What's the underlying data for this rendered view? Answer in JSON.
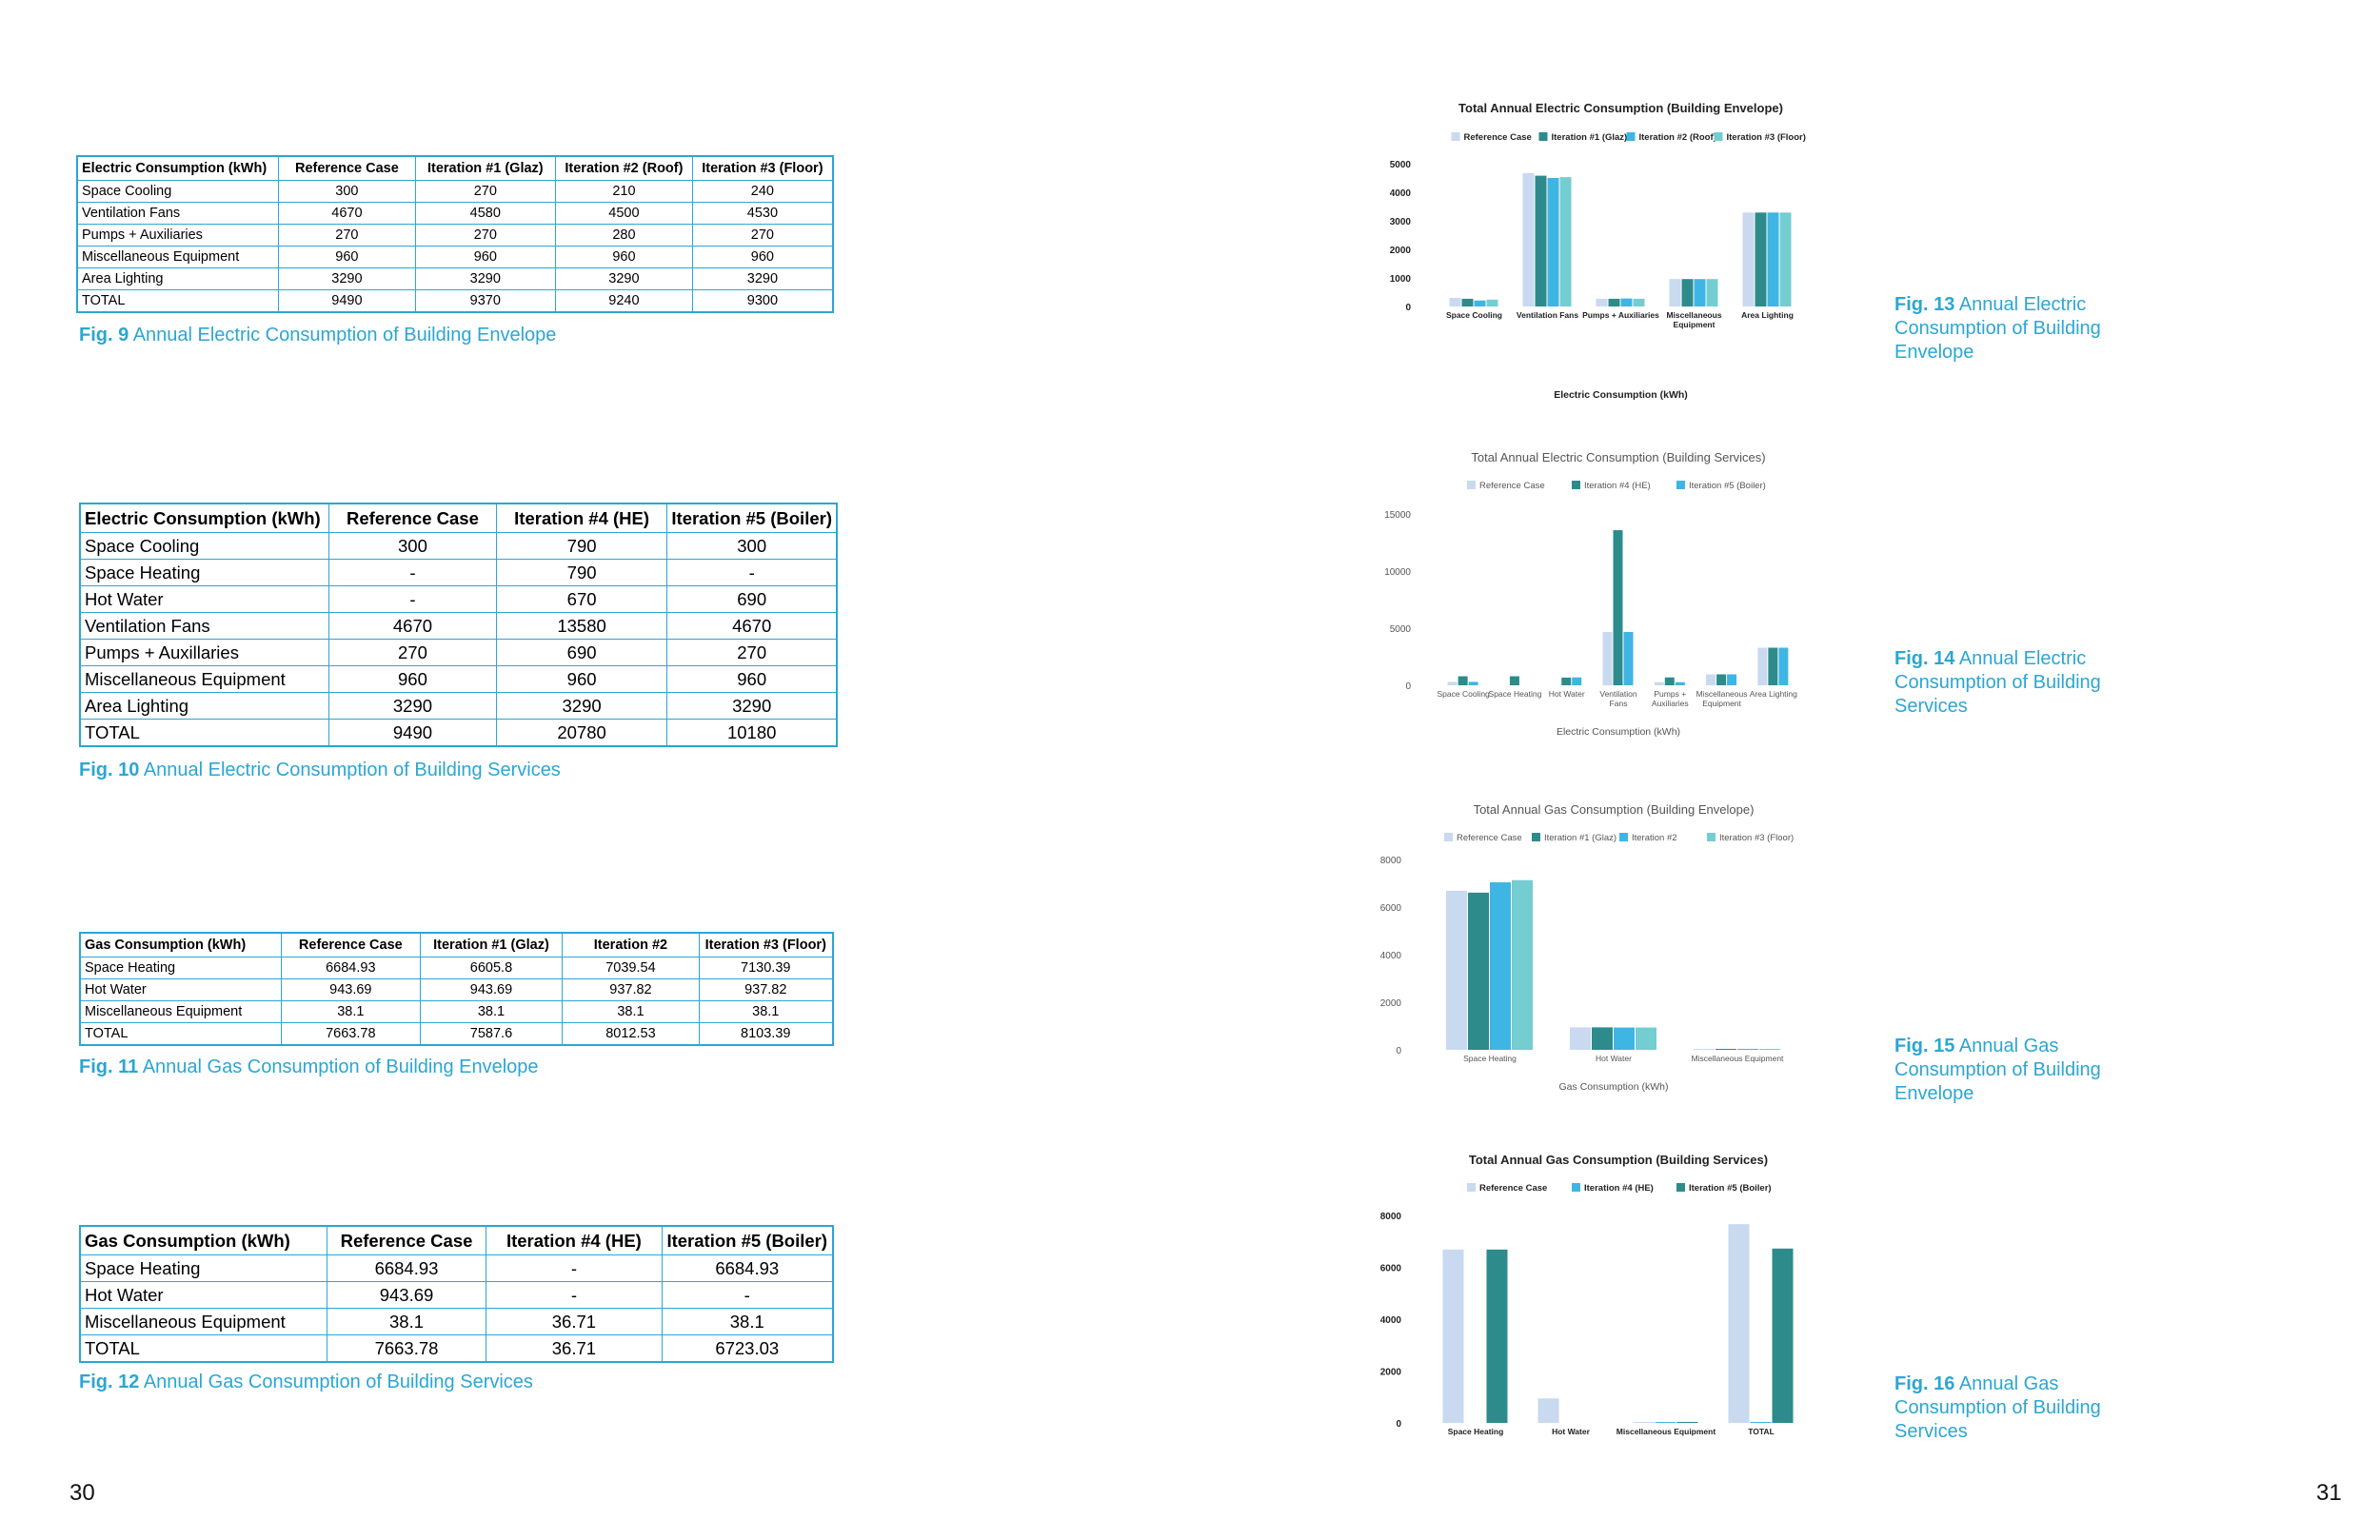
{
  "pages": {
    "left": "30",
    "right": "31"
  },
  "tables": [
    {
      "headers": [
        "Electric Consumption (kWh)",
        "Reference Case",
        "Iteration #1 (Glaz)",
        "Iteration #2 (Roof)",
        "Iteration #3 (Floor)"
      ],
      "rows": [
        [
          "Space Cooling",
          "300",
          "270",
          "210",
          "240"
        ],
        [
          "Ventilation Fans",
          "4670",
          "4580",
          "4500",
          "4530"
        ],
        [
          "Pumps + Auxiliaries",
          "270",
          "270",
          "280",
          "270"
        ],
        [
          "Miscellaneous Equipment",
          "960",
          "960",
          "960",
          "960"
        ],
        [
          "Area Lighting",
          "3290",
          "3290",
          "3290",
          "3290"
        ],
        [
          "TOTAL",
          "9490",
          "9370",
          "9240",
          "9300"
        ]
      ]
    },
    {
      "headers": [
        "Electric Consumption (kWh)",
        "Reference Case",
        "Iteration #4 (HE)",
        "Iteration #5 (Boiler)"
      ],
      "rows": [
        [
          "Space Cooling",
          "300",
          "790",
          "300"
        ],
        [
          "Space Heating",
          "-",
          "790",
          "-"
        ],
        [
          "Hot Water",
          "-",
          "670",
          "690"
        ],
        [
          "Ventilation Fans",
          "4670",
          "13580",
          "4670"
        ],
        [
          "Pumps + Auxillaries",
          "270",
          "690",
          "270"
        ],
        [
          "Miscellaneous Equipment",
          "960",
          "960",
          "960"
        ],
        [
          "Area Lighting",
          "3290",
          "3290",
          "3290"
        ],
        [
          "TOTAL",
          "9490",
          "20780",
          "10180"
        ]
      ]
    },
    {
      "headers": [
        "Gas Consumption (kWh)",
        "Reference Case",
        "Iteration #1 (Glaz)",
        "Iteration #2",
        "Iteration #3 (Floor)"
      ],
      "rows": [
        [
          "Space Heating",
          "6684.93",
          "6605.8",
          "7039.54",
          "7130.39"
        ],
        [
          "Hot Water",
          "943.69",
          "943.69",
          "937.82",
          "937.82"
        ],
        [
          "Miscellaneous Equipment",
          "38.1",
          "38.1",
          "38.1",
          "38.1"
        ],
        [
          "TOTAL",
          "7663.78",
          "7587.6",
          "8012.53",
          "8103.39"
        ]
      ]
    },
    {
      "headers": [
        "Gas Consumption (kWh)",
        "Reference Case",
        "Iteration #4 (HE)",
        "Iteration #5 (Boiler)"
      ],
      "rows": [
        [
          "Space Heating",
          "6684.93",
          "-",
          "6684.93"
        ],
        [
          "Hot Water",
          "943.69",
          "-",
          "-"
        ],
        [
          "Miscellaneous Equipment",
          "38.1",
          "36.71",
          "38.1"
        ],
        [
          "TOTAL",
          "7663.78",
          "36.71",
          "6723.03"
        ]
      ]
    }
  ],
  "captions": {
    "fig9": {
      "num": "Fig. 9",
      "text": "Annual Electric Consumption of Building Envelope"
    },
    "fig10": {
      "num": "Fig. 10",
      "text": "Annual Electric Consumption of Building Services"
    },
    "fig11": {
      "num": "Fig. 11",
      "text": "Annual Gas Consumption of Building Envelope"
    },
    "fig12": {
      "num": "Fig. 12",
      "text": "Annual Gas Consumption of Building Services"
    },
    "fig13": {
      "num": "Fig. 13",
      "text": "Annual Electric Consumption of Building Envelope"
    },
    "fig14": {
      "num": "Fig. 14",
      "text": "Annual Electric Consumption of Building Services"
    },
    "fig15": {
      "num": "Fig. 15",
      "text": "Annual Gas Consumption of Building Envelope"
    },
    "fig16": {
      "num": "Fig. 16",
      "text": "Annual Gas Consumption of Building Services"
    }
  },
  "chart_data": [
    {
      "type": "bar",
      "title": "Total Annual Electric Consumption (Building Envelope)",
      "xlabel": "Electric Consumption (kWh)",
      "ylabel": "",
      "ylim": [
        0,
        5000
      ],
      "yticks": [
        0,
        1000,
        2000,
        3000,
        4000,
        5000
      ],
      "categories": [
        [
          "Space Cooling"
        ],
        [
          "Ventilation Fans"
        ],
        [
          "Pumps + Auxiliaries"
        ],
        [
          "Miscellaneous",
          "Equipment"
        ],
        [
          "Area Lighting"
        ]
      ],
      "series": [
        {
          "name": "Reference Case",
          "color": "#c9d9ef",
          "values": [
            300,
            4670,
            270,
            960,
            3290
          ]
        },
        {
          "name": "Iteration #1 (Glaz)",
          "color": "#2e8b8b",
          "values": [
            270,
            4580,
            270,
            960,
            3290
          ]
        },
        {
          "name": "Iteration #2 (Roof)",
          "color": "#3fb5e3",
          "values": [
            210,
            4500,
            280,
            960,
            3290
          ]
        },
        {
          "name": "Iteration #3 (Floor)",
          "color": "#74cdd0",
          "values": [
            240,
            4530,
            270,
            960,
            3290
          ]
        }
      ]
    },
    {
      "type": "bar",
      "title": "Total Annual Electric Consumption (Building Services)",
      "xlabel": "Electric Consumption (kWh)",
      "ylabel": "",
      "ylim": [
        0,
        15000
      ],
      "yticks": [
        0,
        5000,
        10000,
        15000
      ],
      "categories": [
        [
          "Space Cooling"
        ],
        [
          "Space Heating"
        ],
        [
          "Hot Water"
        ],
        [
          "Ventilation",
          "Fans"
        ],
        [
          "Pumps +",
          "Auxiliaries"
        ],
        [
          "Miscellaneous",
          "Equipment"
        ],
        [
          "Area Lighting"
        ]
      ],
      "series": [
        {
          "name": "Reference Case",
          "color": "#c9d9ef",
          "values": [
            300,
            0,
            0,
            4670,
            270,
            960,
            3290
          ]
        },
        {
          "name": "Iteration #4 (HE)",
          "color": "#2e8b8b",
          "values": [
            790,
            790,
            670,
            13580,
            690,
            960,
            3290
          ]
        },
        {
          "name": "Iteration #5 (Boiler)",
          "color": "#3fb5e3",
          "values": [
            300,
            0,
            690,
            4670,
            270,
            960,
            3290
          ]
        }
      ]
    },
    {
      "type": "bar",
      "title": "Total Annual Gas Consumption (Building Envelope)",
      "xlabel": "Gas Consumption (kWh)",
      "ylabel": "",
      "ylim": [
        0,
        8000
      ],
      "yticks": [
        0,
        2000,
        4000,
        6000,
        8000
      ],
      "categories": [
        [
          "Space Heating"
        ],
        [
          "Hot Water"
        ],
        [
          "Miscellaneous Equipment"
        ]
      ],
      "series": [
        {
          "name": "Reference Case",
          "color": "#c9d9ef",
          "values": [
            6684.93,
            943.69,
            38.1
          ]
        },
        {
          "name": "Iteration #1 (Glaz)",
          "color": "#2e8b8b",
          "values": [
            6605.8,
            943.69,
            38.1
          ]
        },
        {
          "name": "Iteration #2",
          "color": "#3fb5e3",
          "values": [
            7039.54,
            937.82,
            38.1
          ]
        },
        {
          "name": "Iteration #3 (Floor)",
          "color": "#74cdd0",
          "values": [
            7130.39,
            937.82,
            38.1
          ]
        }
      ]
    },
    {
      "type": "bar",
      "title": "Total Annual Gas Consumption (Building Services)",
      "xlabel": "",
      "ylabel": "",
      "ylim": [
        0,
        8000
      ],
      "yticks": [
        0,
        2000,
        4000,
        6000,
        8000
      ],
      "categories": [
        [
          "Space Heating"
        ],
        [
          "Hot Water"
        ],
        [
          "Miscellaneous Equipment"
        ],
        [
          "TOTAL"
        ]
      ],
      "series": [
        {
          "name": "Reference Case",
          "color": "#c9d9ef",
          "values": [
            6684.93,
            943.69,
            38.1,
            7663.78
          ]
        },
        {
          "name": "Iteration #4 (HE)",
          "color": "#3fb5e3",
          "values": [
            0,
            0,
            36.71,
            36.71
          ]
        },
        {
          "name": "Iteration #5 (Boiler)",
          "color": "#2e8b8b",
          "values": [
            6684.93,
            0,
            38.1,
            6723.03
          ]
        }
      ]
    }
  ]
}
